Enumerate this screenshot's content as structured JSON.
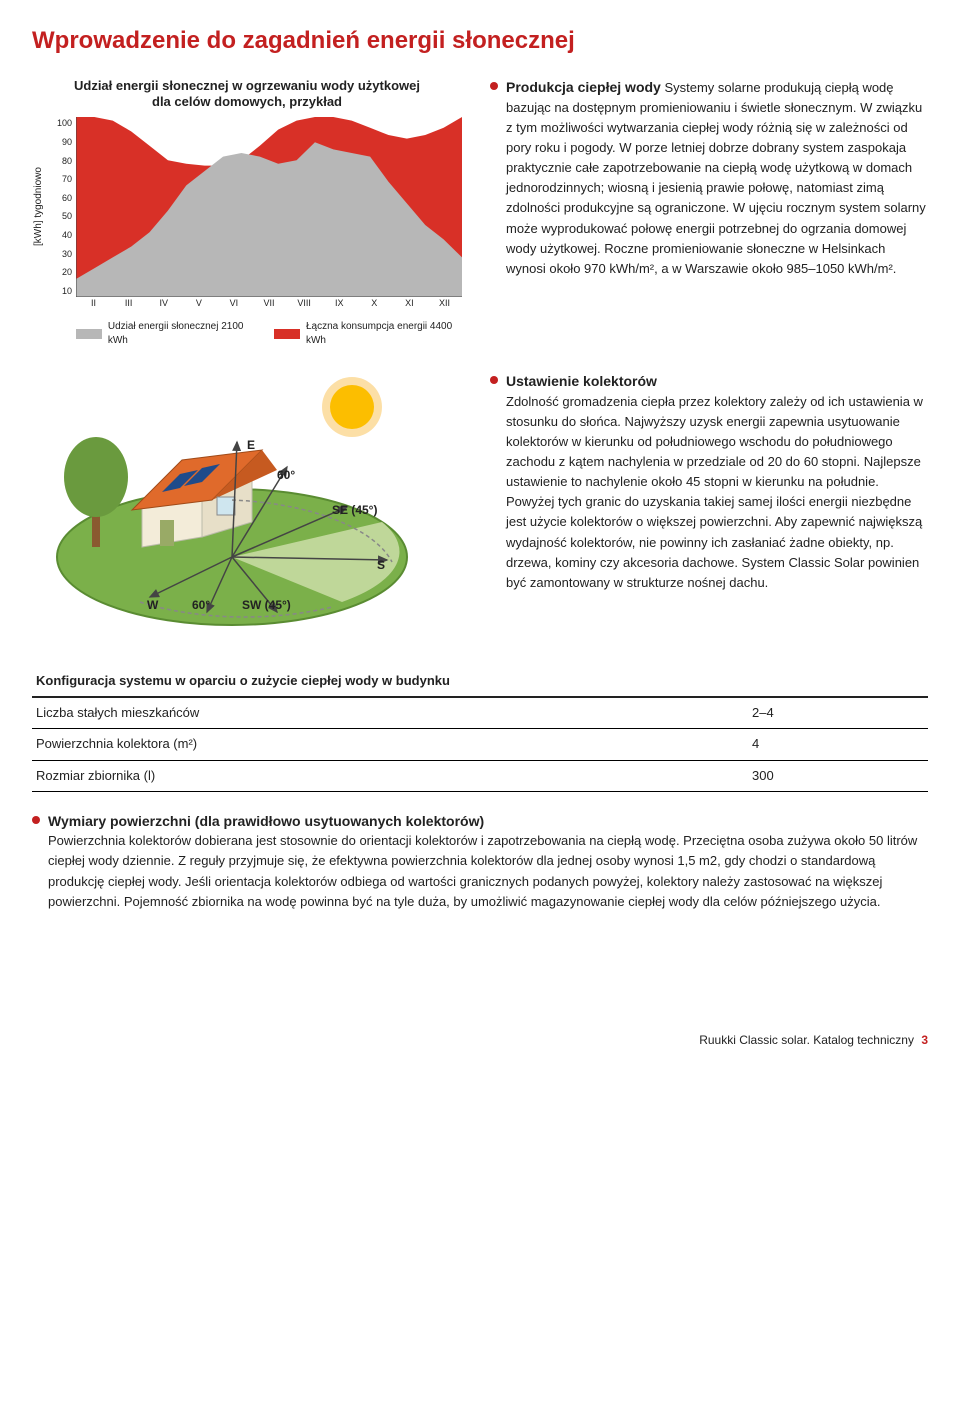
{
  "page_title": "Wprowadzenie do zagadnień energii słonecznej",
  "chart": {
    "type": "area",
    "title_line1": "Udział energii słonecznej w ogrzewaniu wody użytkowej",
    "title_line2": "dla celów domowych, przykład",
    "y_axis_label": "[kWh] tygodniowo",
    "y_ticks": [
      "100",
      "90",
      "80",
      "70",
      "60",
      "50",
      "40",
      "30",
      "20",
      "10"
    ],
    "x_ticks": [
      "II",
      "III",
      "IV",
      "V",
      "VI",
      "VII",
      "VIII",
      "IX",
      "X",
      "XI",
      "XII"
    ],
    "legend": [
      {
        "label": "Udział energii słonecznej 2100 kWh",
        "color": "#b7b7b7"
      },
      {
        "label": "Łączna konsumpcja energii 4400 kWh",
        "color": "#d83027"
      }
    ],
    "series_total_color": "#d83027",
    "series_solar_color": "#b7b7b7",
    "background_color": "#ffffff",
    "total": [
      100,
      100,
      98,
      92,
      84,
      76,
      74,
      73,
      73,
      76,
      84,
      93,
      98,
      100,
      100,
      98,
      94,
      90,
      88,
      90,
      94,
      100
    ],
    "solar": [
      10,
      16,
      22,
      28,
      36,
      48,
      62,
      70,
      78,
      80,
      78,
      74,
      76,
      86,
      82,
      80,
      78,
      64,
      52,
      40,
      32,
      22
    ]
  },
  "section1": {
    "heading": "Produkcja ciepłej wody",
    "body": "Systemy solarne produkują ciepłą wodę bazując na dostępnym promieniowaniu i świetle słonecznym. W związku z tym możliwości wytwarzania ciepłej wody różnią się w zależności od pory roku i pogody. W porze letniej dobrze dobrany system zaspokaja praktycznie całe zapotrzebowanie na ciepłą wodę użytkową w domach jednorodzinnych; wiosną i jesienią prawie połowę, natomiast zimą zdolności produkcyjne są ograniczone. W ujęciu rocznym system solarny może wyprodukować połowę energii potrzebnej do ogrzania domowej wody użytkowej. Roczne promieniowanie słoneczne w Helsinkach wynosi około 970 kWh/m², a w Warszawie około 985–1050 kWh/m²."
  },
  "diagram": {
    "labels": {
      "E": "E",
      "W": "W",
      "S": "S",
      "SE": "SE (45°)",
      "SW": "SW (45°)",
      "a60_1": "60°",
      "a60_2": "60°"
    },
    "colors": {
      "sky": "#fff6c4",
      "sun": "#ffcc00",
      "sun_ring": "#f7a400",
      "ground": "#7bb04a",
      "ground_edge": "#5a8c32",
      "roof": "#e06a2b",
      "wall": "#f3ecd9",
      "panel": "#1f4b8a",
      "tree": "#6a9a3e",
      "trunk": "#8a5a30"
    }
  },
  "section2": {
    "heading": "Ustawienie kolektorów",
    "body": "Zdolność gromadzenia ciepła przez kolektory zależy od ich ustawienia w stosunku do słońca. Najwyższy uzysk energii zapewnia usytuowanie kolektorów w kierunku od południowego wschodu do południowego zachodu z kątem nachylenia w przedziale od 20 do 60 stopni. Najlepsze ustawienie to nachylenie około 45 stopni w kierunku na południe. Powyżej tych granic do uzyskania takiej samej ilości energii niezbędne jest użycie kolektorów o większej powierzchni. Aby zapewnić największą wydajność kolektorów, nie powinny ich zasłaniać żadne obiekty, np. drzewa, kominy czy akcesoria dachowe. System Classic Solar powinien być zamontowany w strukturze nośnej dachu."
  },
  "config_table": {
    "caption": "Konfiguracja systemu w oparciu o zużycie ciepłej wody w budynku",
    "rows": [
      {
        "label": "Liczba stałych mieszkańców",
        "value": "2–4"
      },
      {
        "label": "Powierzchnia kolektora (m²)",
        "value": "4"
      },
      {
        "label": "Rozmiar zbiornika (l)",
        "value": "300"
      }
    ]
  },
  "section3": {
    "heading": "Wymiary powierzchni (dla prawidłowo usytuowanych kolektorów)",
    "body": "Powierzchnia kolektorów dobierana jest stosownie do orientacji kolektorów i zapotrzebowania na ciepłą wodę. Przeciętna osoba zużywa około 50 litrów ciepłej wody dziennie. Z reguły przyjmuje się, że efektywna powierzchnia kolektorów dla jednej osoby wynosi 1,5 m2, gdy chodzi o standardową produkcję ciepłej wody. Jeśli orientacja kolektorów odbiega od wartości granicznych podanych powyżej, kolektory należy zastosować na większej powierzchni. Pojemność zbiornika na wodę powinna być na tyle duża, by umożliwić magazynowanie ciepłej wody dla celów późniejszego użycia."
  },
  "footer": {
    "text": "Ruukki Classic solar. Katalog techniczny",
    "page": "3"
  }
}
